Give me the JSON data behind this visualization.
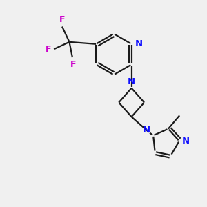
{
  "bg_color": "#f0f0f0",
  "bond_color": "#1a1a1a",
  "N_color": "#1010ff",
  "F_color": "#cc00cc",
  "line_width": 1.6,
  "figsize": [
    3.0,
    3.0
  ],
  "dpi": 100,
  "xlim": [
    0,
    10
  ],
  "ylim": [
    0,
    10
  ]
}
